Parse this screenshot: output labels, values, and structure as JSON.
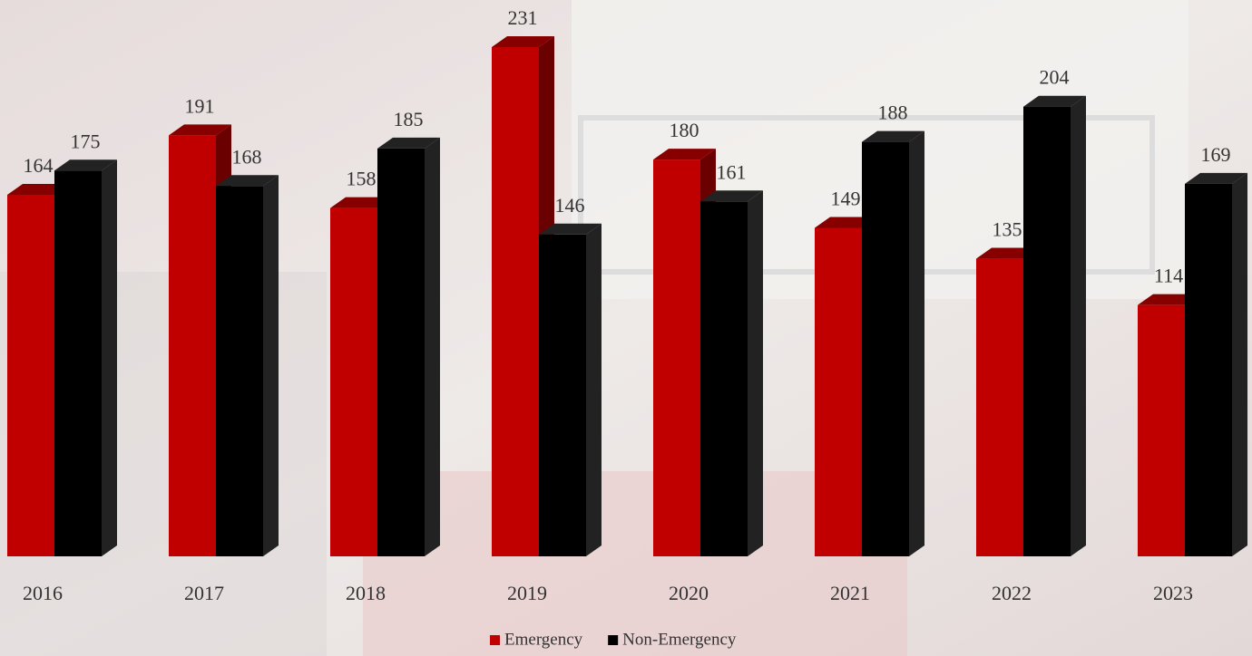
{
  "chart_data": {
    "type": "bar",
    "categories": [
      "2016",
      "2017",
      "2018",
      "2019",
      "2020",
      "2021",
      "2022",
      "2023"
    ],
    "series": [
      {
        "name": "Emergency",
        "color": "#c00000",
        "values": [
          164,
          191,
          158,
          231,
          180,
          149,
          135,
          114
        ]
      },
      {
        "name": "Non-Emergency",
        "color": "#000000",
        "values": [
          175,
          168,
          185,
          146,
          161,
          188,
          204,
          169
        ]
      }
    ],
    "legend": "bottom"
  }
}
